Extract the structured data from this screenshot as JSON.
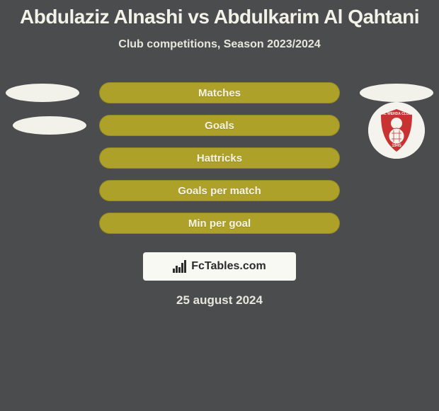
{
  "colors": {
    "background": "#4b4c4e",
    "title_color": "#f3f2e8",
    "subtitle_color": "#e7e6dd",
    "pill_fill": "#aea129",
    "pill_label_color": "#f4f2e4",
    "side_ellipse_fill": "#f3f2ea",
    "logo_bg": "#f9f9f4",
    "logo_text": "#2b2b2b",
    "date_color": "#e7e6dd",
    "badge_bg": "#f5f3ee",
    "badge_red": "#c83233"
  },
  "header": {
    "title": "Abdulaziz Alnashi vs Abdulkarim Al Qahtani",
    "subtitle": "Club competitions, Season 2023/2024"
  },
  "chart": {
    "track_width": 340,
    "rows": [
      {
        "label": "Matches",
        "left_ellipse": true,
        "right_ellipse": true
      },
      {
        "label": "Goals",
        "left_ellipse": true,
        "right_ellipse": false
      },
      {
        "label": "Hattricks",
        "left_ellipse": false,
        "right_ellipse": false
      },
      {
        "label": "Goals per match",
        "left_ellipse": false,
        "right_ellipse": false
      },
      {
        "label": "Min per goal",
        "left_ellipse": false,
        "right_ellipse": false
      }
    ],
    "left_ellipse_offsets": [
      0,
      10
    ],
    "right_badge_row_center": 1,
    "badge_label": "AL WEHDA CLUB",
    "badge_year": "1945"
  },
  "footer": {
    "logo_text": "FcTables.com",
    "date": "25 august 2024"
  }
}
